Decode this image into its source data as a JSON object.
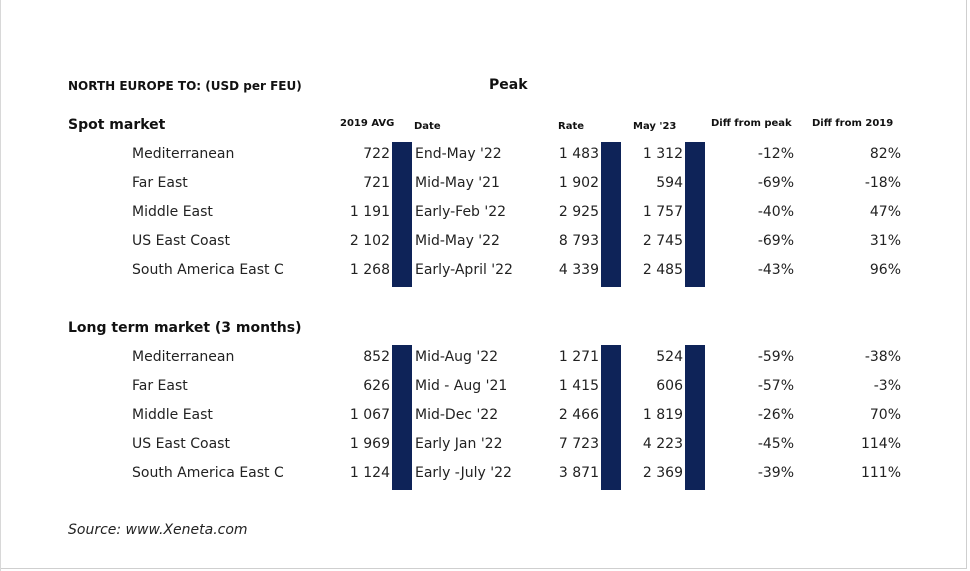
{
  "header": {
    "title": "NORTH EUROPE TO: (USD per FEU)",
    "peak_label": "Peak"
  },
  "columns": {
    "avg2019": "2019 AVG",
    "date": "Date",
    "rate": "Rate",
    "may23": "May '23",
    "diff_peak": "Diff from peak",
    "diff_2019": "Diff from 2019"
  },
  "colors": {
    "bar": "#0e2358"
  },
  "spot": {
    "title": "Spot market",
    "rows": [
      {
        "route": "Mediterranean",
        "avg2019": "722",
        "date": "End-May '22",
        "rate": "1 483",
        "may23": "1 312",
        "diff_peak": "-12%",
        "diff_2019": "82%"
      },
      {
        "route": "Far East",
        "avg2019": "721",
        "date": "Mid-May '21",
        "rate": "1 902",
        "may23": "594",
        "diff_peak": "-69%",
        "diff_2019": "-18%"
      },
      {
        "route": "Middle East",
        "avg2019": "1 191",
        "date": "Early-Feb '22",
        "rate": "2 925",
        "may23": "1 757",
        "diff_peak": "-40%",
        "diff_2019": "47%"
      },
      {
        "route": "US East Coast",
        "avg2019": "2 102",
        "date": "Mid-May '22",
        "rate": "8 793",
        "may23": "2 745",
        "diff_peak": "-69%",
        "diff_2019": "31%"
      },
      {
        "route": "South America East C",
        "avg2019": "1 268",
        "date": "Early-April '22",
        "rate": "4 339",
        "may23": "2 485",
        "diff_peak": "-43%",
        "diff_2019": "96%"
      }
    ]
  },
  "longterm": {
    "title": "Long term market (3 months)",
    "rows": [
      {
        "route": "Mediterranean",
        "avg2019": "852",
        "date": "Mid-Aug '22",
        "rate": "1 271",
        "may23": "524",
        "diff_peak": "-59%",
        "diff_2019": "-38%"
      },
      {
        "route": "Far East",
        "avg2019": "626",
        "date": "Mid - Aug '21",
        "rate": "1 415",
        "may23": "606",
        "diff_peak": "-57%",
        "diff_2019": "-3%"
      },
      {
        "route": "Middle East",
        "avg2019": "1 067",
        "date": "Mid-Dec '22",
        "rate": "2 466",
        "may23": "1 819",
        "diff_peak": "-26%",
        "diff_2019": "70%"
      },
      {
        "route": "US East Coast",
        "avg2019": "1 969",
        "date": "Early Jan '22",
        "rate": "7 723",
        "may23": "4 223",
        "diff_peak": "-45%",
        "diff_2019": "114%"
      },
      {
        "route": "South America East C",
        "avg2019": "1 124",
        "date": "Early -July '22",
        "rate": "3 871",
        "may23": "2 369",
        "diff_peak": "-39%",
        "diff_2019": "111%"
      }
    ]
  },
  "source": "Source: www.Xeneta.com"
}
